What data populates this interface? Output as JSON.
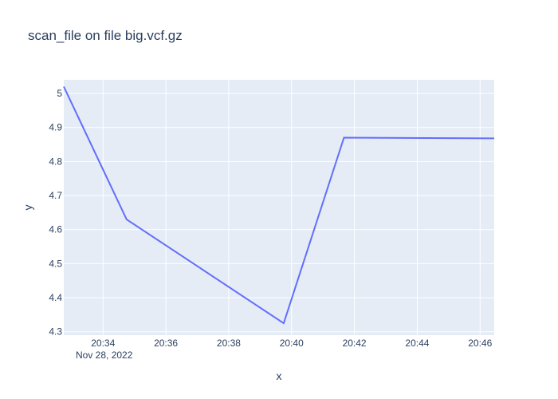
{
  "chart_data": {
    "type": "line",
    "title": "scan_file on file big.vcf.gz",
    "xlabel": "x",
    "ylabel": "y",
    "date_label": "Nov 28, 2022",
    "x_ticks": [
      "20:34",
      "20:36",
      "20:38",
      "20:40",
      "20:42",
      "20:44",
      "20:46"
    ],
    "y_ticks": [
      "4.3",
      "4.4",
      "4.5",
      "4.6",
      "4.7",
      "4.8",
      "4.9",
      "5"
    ],
    "xlim": [
      "20:32:45",
      "20:46:27"
    ],
    "ylim": [
      4.29,
      5.04
    ],
    "grid": true,
    "series": [
      {
        "x": [
          "20:32:45",
          "20:34:45",
          "20:39:45",
          "20:41:40",
          "20:46:27"
        ],
        "values": [
          5.02,
          4.63,
          4.325,
          4.87,
          4.868
        ]
      }
    ],
    "colors": {
      "line": "#636efa",
      "plot_bg": "#e5ecf6",
      "grid": "#ffffff",
      "text": "#2a3f5f"
    }
  }
}
